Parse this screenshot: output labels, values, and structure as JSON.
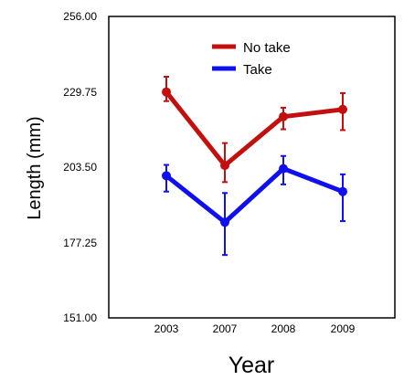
{
  "chart_data": {
    "type": "line",
    "xlabel": "Year",
    "ylabel": "Length (mm)",
    "categories": [
      "2003",
      "2007",
      "2008",
      "2009"
    ],
    "y_ticks": [
      "256.00",
      "229.75",
      "203.50",
      "177.25",
      "151.00"
    ],
    "ylim": [
      151.0,
      256.0
    ],
    "grid": false,
    "legend": "top-center",
    "series": [
      {
        "name": "No take",
        "color": "#c40f0f",
        "values": [
          229.7,
          204.1,
          221.1,
          223.6
        ],
        "err_low": [
          226.5,
          198.3,
          216.7,
          216.4
        ],
        "err_high": [
          235.0,
          211.9,
          224.2,
          229.3
        ]
      },
      {
        "name": "Take",
        "color": "#1010ee",
        "values": [
          200.5,
          184.3,
          203.0,
          195.0
        ],
        "err_low": [
          195.0,
          172.9,
          197.5,
          184.7
        ],
        "err_high": [
          204.3,
          194.5,
          207.4,
          201.0
        ]
      }
    ]
  }
}
